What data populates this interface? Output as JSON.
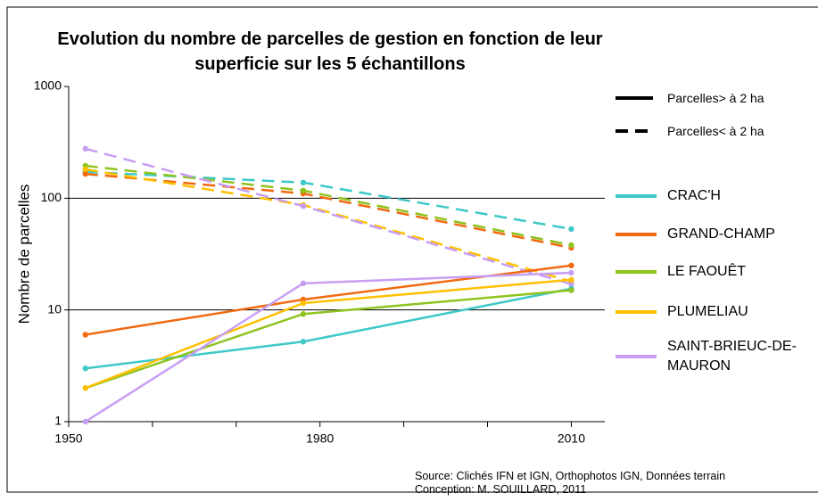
{
  "chart_data": {
    "type": "line",
    "title": "Evolution du nombre de parcelles de gestion en fonction de leur superficie sur les 5 échantillons",
    "y_label": "Nombre de parcelles",
    "x": [
      1952,
      1978,
      2010
    ],
    "xlim": [
      1950,
      2014
    ],
    "xticks": [
      1950,
      1980,
      2010
    ],
    "xminorticks": [
      1960,
      1970,
      1990,
      2000
    ],
    "ylim": [
      1,
      1000
    ],
    "yticks": [
      1,
      10,
      100,
      1000
    ],
    "log_y": true,
    "grid": true,
    "styles": [
      {
        "label": "Parcelles> à 2 ha",
        "dashed": false
      },
      {
        "label": "Parcelles< à 2 ha",
        "dashed": true
      }
    ],
    "series": [
      {
        "name": "CRAC'H",
        "color": "#3ec8c8",
        "values": [
          3,
          5.2,
          15.5
        ],
        "values_small": [
          172,
          138,
          53
        ]
      },
      {
        "name": "GRAND-CHAMP",
        "color": "#f26a10",
        "values": [
          6,
          12.4,
          25
        ],
        "values_small": [
          165,
          110,
          36
        ]
      },
      {
        "name": "LE FAOUÊT",
        "color": "#8fc31f",
        "values": [
          2,
          9.2,
          15
        ],
        "values_small": [
          195,
          117,
          38
        ]
      },
      {
        "name": "PLUMELIAU",
        "color": "#ffc000",
        "values": [
          2,
          11.5,
          18.6
        ],
        "values_small": [
          181,
          87,
          18
        ]
      },
      {
        "name": "SAINT-BRIEUC-DE-MAURON",
        "color": "#c89ef5",
        "values": [
          1,
          17.3,
          21.5
        ],
        "values_small": [
          277,
          85,
          17
        ]
      }
    ],
    "source": [
      "Source: Clichés IFN et IGN, Orthophotos IGN, Données terrain",
      "Conception: M. SOUILLARD, 2011"
    ]
  }
}
